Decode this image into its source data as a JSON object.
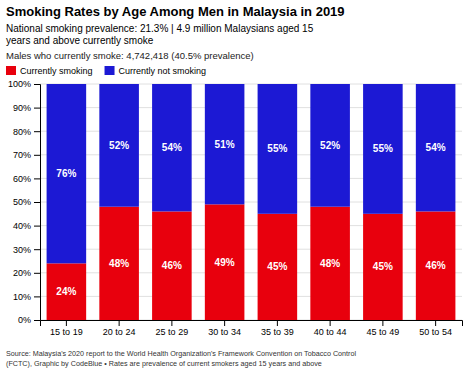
{
  "chart_data": {
    "type": "bar",
    "stacked": true,
    "title": "Smoking Rates by Age Among Men in Malaysia in 2019",
    "subtitle": [
      "National smoking prevalence: 21.3% | 4.9 million Malaysians aged 15",
      "years and above currently smoke",
      "Males who currently smoke: 4,742,418 (40.5% prevalence)"
    ],
    "annotations": [
      "Source: Malaysia's 2020 report to the World Health Organization's Framework Convention on Tobacco Control",
      "(FCTC), Graphic by CodeBlue • Rates are prevalence of current smokers aged 15 years and above"
    ],
    "categories": [
      "15 to 19",
      "20 to 24",
      "25 to 29",
      "30 to 34",
      "35 to 39",
      "40 to 44",
      "45 to 49",
      "50 to 54"
    ],
    "series": [
      {
        "name": "Currently smoking",
        "color": "#e8000d",
        "values": [
          24,
          48,
          46,
          49,
          45,
          48,
          45,
          46
        ],
        "value_labels": [
          "24%",
          "48%",
          "46%",
          "49%",
          "45%",
          "48%",
          "45%",
          "46%"
        ]
      },
      {
        "name": "Currently not smoking",
        "color": "#1c19d4",
        "values": [
          76,
          52,
          54,
          51,
          55,
          52,
          55,
          54
        ],
        "value_labels": [
          "76%",
          "52%",
          "54%",
          "51%",
          "55%",
          "52%",
          "55%",
          "54%"
        ]
      }
    ],
    "ylim": [
      0,
      100
    ],
    "yticks": [
      {
        "value": 0,
        "label": "0%"
      },
      {
        "value": 10,
        "label": "10%"
      },
      {
        "value": 20,
        "label": "20%"
      },
      {
        "value": 30,
        "label": "30%"
      },
      {
        "value": 40,
        "label": "40%"
      },
      {
        "value": 50,
        "label": "50%"
      },
      {
        "value": 60,
        "label": "60%"
      },
      {
        "value": 70,
        "label": "70%"
      },
      {
        "value": 80,
        "label": "80%"
      },
      {
        "value": 90,
        "label": "90%"
      },
      {
        "value": 100,
        "label": "100%"
      }
    ],
    "grid": true,
    "legend": "top-left",
    "data_labels": true
  }
}
